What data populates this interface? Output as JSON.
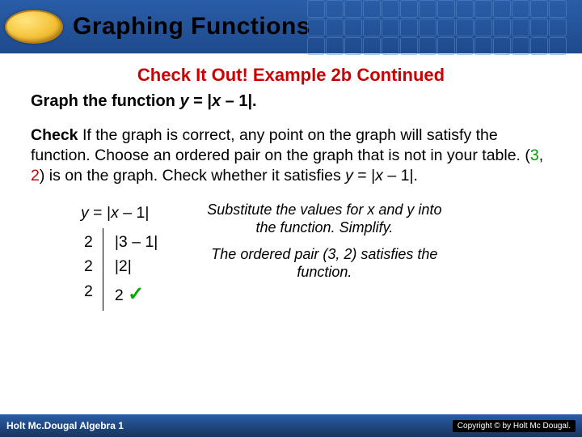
{
  "header": {
    "title": "Graphing Functions"
  },
  "section": {
    "title": "Check It Out! Example 2b Continued",
    "prompt_prefix": "Graph the function ",
    "prompt_eq_y": "y",
    "prompt_eq_mid": " = |",
    "prompt_eq_x": "x",
    "prompt_eq_end": " – 1|."
  },
  "body": {
    "check_label": "Check",
    "t1": "  If the graph is correct, any point on the graph will satisfy the function. Choose an ordered pair on the graph that is not in your table. (",
    "g3": "3",
    "comma": ", ",
    "r2": "2",
    "t2": ") is on the graph. Check whether it satisfies ",
    "y": "y",
    "mid": " = |",
    "x": "x",
    "end": " – 1|."
  },
  "work": {
    "eq_y": "y",
    "eq_eq": " = ",
    "eq_bar1": "|",
    "eq_x": "x ",
    "eq_rest": " – 1|",
    "left": [
      "2",
      "2",
      "2"
    ],
    "r1": "|3 – 1|",
    "r2": "|2|",
    "r3": " 2 ",
    "check": "✓"
  },
  "explain": {
    "p1": "Substitute the values for x and y into the function. Simplify.",
    "p2": "The ordered pair (3, 2) satisfies the function."
  },
  "footer": {
    "left": "Holt Mc.Dougal Algebra 1",
    "copyright": "Copyright © by Holt Mc Dougal."
  },
  "colors": {
    "header_bg": "#1e4a8c",
    "accent_red": "#cc0000",
    "accent_green": "#009900"
  }
}
